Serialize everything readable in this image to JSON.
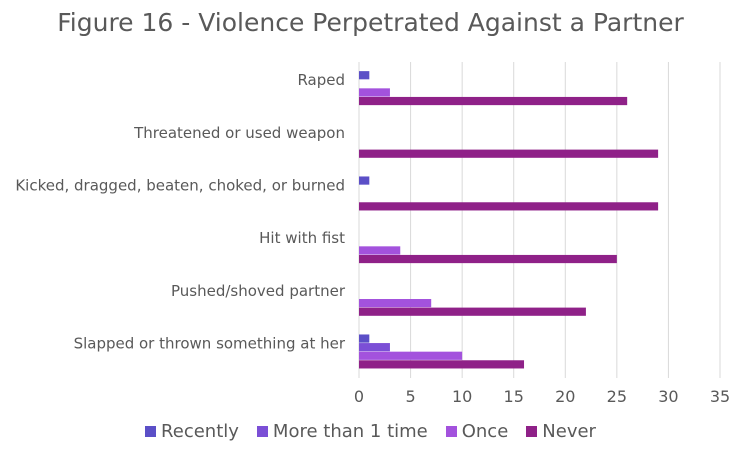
{
  "chart_data": {
    "type": "bar",
    "orientation": "horizontal",
    "title": "Figure 16 - Violence Perpetrated Against a Partner",
    "categories": [
      "Raped",
      "Threatened or used weapon",
      "Kicked, dragged, beaten, choked, or burned",
      "Hit with fist",
      "Pushed/shoved partner",
      "Slapped or thrown something at her"
    ],
    "series": [
      {
        "name": "Recently",
        "color": "#5b4fc7",
        "values": [
          1,
          0,
          1,
          0,
          0,
          1
        ]
      },
      {
        "name": "More than 1 time",
        "color": "#7b4fd6",
        "values": [
          0,
          0,
          0,
          0,
          0,
          3
        ]
      },
      {
        "name": "Once",
        "color": "#a352dd",
        "values": [
          3,
          0,
          0,
          4,
          7,
          10
        ]
      },
      {
        "name": "Never",
        "color": "#8f2188",
        "values": [
          26,
          29,
          29,
          25,
          22,
          16
        ]
      }
    ],
    "xlim": [
      0,
      35
    ],
    "xticks": [
      0,
      5,
      10,
      15,
      20,
      25,
      30,
      35
    ],
    "grid": true,
    "legend_position": "bottom"
  }
}
